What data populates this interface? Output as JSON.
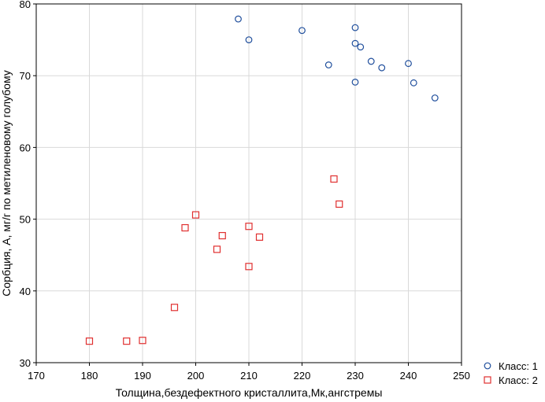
{
  "chart_data": {
    "type": "scatter",
    "xlabel": "Толщина,бездефектного кристаллита,Мк,ангстремы",
    "ylabel": "Сорбция, А, мг/г по метиленовому голубому",
    "xlim": [
      170,
      250
    ],
    "ylim": [
      30,
      80
    ],
    "xticks": [
      170,
      180,
      190,
      200,
      210,
      220,
      230,
      240,
      250
    ],
    "yticks": [
      30,
      40,
      50,
      60,
      70,
      80
    ],
    "grid": true,
    "legend_position": "bottom-right",
    "series": [
      {
        "name": "Класс: 1",
        "marker": "circle",
        "color": "#1f4e9c",
        "points": [
          [
            208,
            77.9
          ],
          [
            210,
            75.0
          ],
          [
            220,
            76.3
          ],
          [
            230,
            76.7
          ],
          [
            230,
            74.5
          ],
          [
            231,
            74.0
          ],
          [
            225,
            71.5
          ],
          [
            233,
            72.0
          ],
          [
            235,
            71.1
          ],
          [
            230,
            69.1
          ],
          [
            240,
            71.7
          ],
          [
            241,
            69.0
          ],
          [
            245,
            66.9
          ]
        ]
      },
      {
        "name": "Класс: 2",
        "marker": "square",
        "color": "#e03030",
        "points": [
          [
            180,
            33.0
          ],
          [
            187,
            33.0
          ],
          [
            190,
            33.1
          ],
          [
            196,
            37.7
          ],
          [
            198,
            48.8
          ],
          [
            200,
            50.6
          ],
          [
            204,
            45.8
          ],
          [
            205,
            47.7
          ],
          [
            210,
            49.0
          ],
          [
            210,
            43.4
          ],
          [
            212,
            47.5
          ],
          [
            226,
            55.6
          ],
          [
            227,
            52.1
          ]
        ]
      }
    ]
  }
}
